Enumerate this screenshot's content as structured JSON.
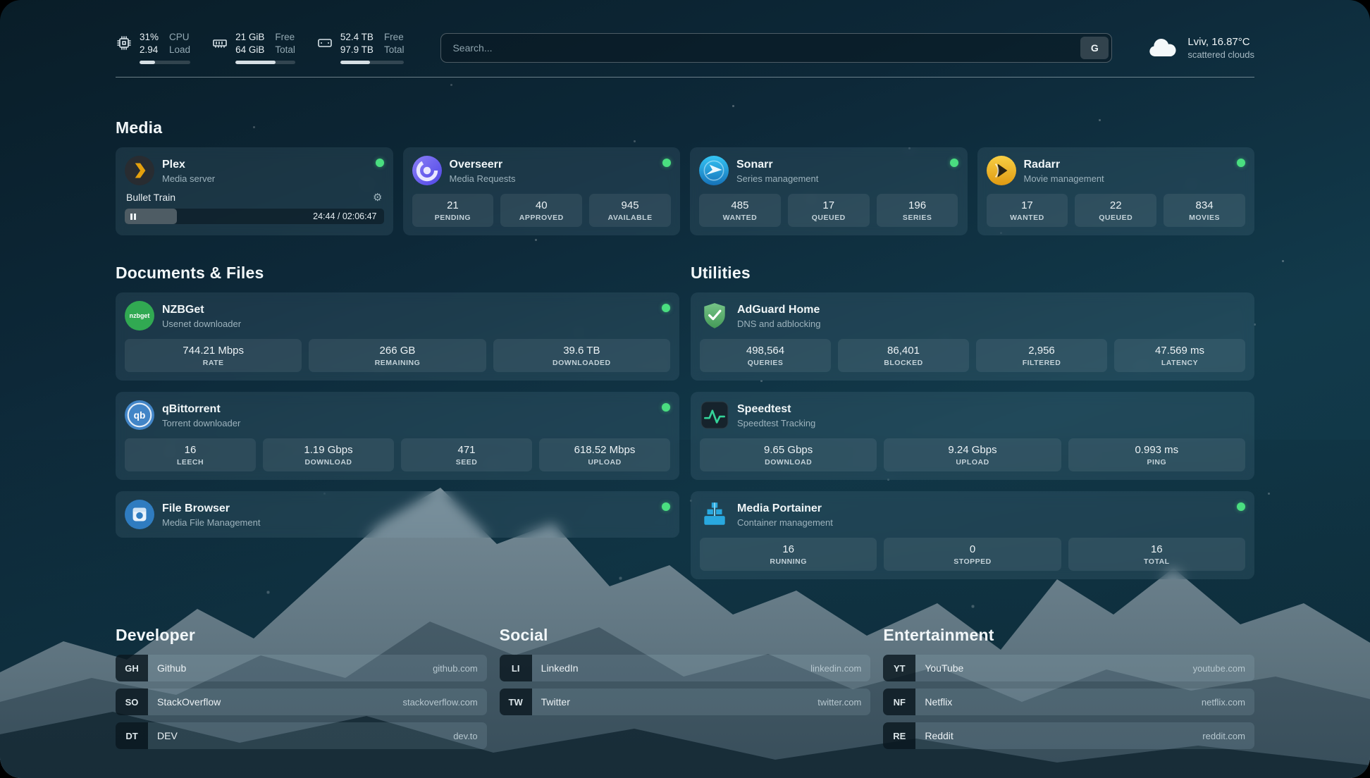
{
  "colors": {
    "status_ok": "#4ade80"
  },
  "topbar": {
    "cpu": {
      "value_top": "31%",
      "value_bottom": "2.94",
      "label_top": "CPU",
      "label_bottom": "Load",
      "progress": 31
    },
    "memory": {
      "value_top": "21 GiB",
      "value_bottom": "64 GiB",
      "label_top": "Free",
      "label_bottom": "Total",
      "progress": 67
    },
    "disk": {
      "value_top": "52.4 TB",
      "value_bottom": "97.9 TB",
      "label_top": "Free",
      "label_bottom": "Total",
      "progress": 47
    },
    "search": {
      "placeholder": "Search...",
      "provider_button": "G"
    },
    "weather": {
      "location": "Lviv, 16.87°C",
      "condition": "scattered clouds"
    }
  },
  "media": {
    "title": "Media",
    "plex": {
      "name": "Plex",
      "subtitle": "Media server",
      "now_playing": "Bullet Train",
      "time": "24:44 / 02:06:47",
      "progress": 20
    },
    "overseerr": {
      "name": "Overseerr",
      "subtitle": "Media Requests",
      "stats": [
        {
          "value": "21",
          "label": "PENDING"
        },
        {
          "value": "40",
          "label": "APPROVED"
        },
        {
          "value": "945",
          "label": "AVAILABLE"
        }
      ]
    },
    "sonarr": {
      "name": "Sonarr",
      "subtitle": "Series management",
      "stats": [
        {
          "value": "485",
          "label": "WANTED"
        },
        {
          "value": "17",
          "label": "QUEUED"
        },
        {
          "value": "196",
          "label": "SERIES"
        }
      ]
    },
    "radarr": {
      "name": "Radarr",
      "subtitle": "Movie management",
      "stats": [
        {
          "value": "17",
          "label": "WANTED"
        },
        {
          "value": "22",
          "label": "QUEUED"
        },
        {
          "value": "834",
          "label": "MOVIES"
        }
      ]
    }
  },
  "documents": {
    "title": "Documents & Files",
    "nzbget": {
      "name": "NZBGet",
      "subtitle": "Usenet downloader",
      "stats": [
        {
          "value": "744.21 Mbps",
          "label": "RATE"
        },
        {
          "value": "266 GB",
          "label": "REMAINING"
        },
        {
          "value": "39.6 TB",
          "label": "DOWNLOADED"
        }
      ]
    },
    "qbittorrent": {
      "name": "qBittorrent",
      "subtitle": "Torrent downloader",
      "stats": [
        {
          "value": "16",
          "label": "LEECH"
        },
        {
          "value": "1.19 Gbps",
          "label": "DOWNLOAD"
        },
        {
          "value": "471",
          "label": "SEED"
        },
        {
          "value": "618.52 Mbps",
          "label": "UPLOAD"
        }
      ]
    },
    "filebrowser": {
      "name": "File Browser",
      "subtitle": "Media File Management"
    }
  },
  "utilities": {
    "title": "Utilities",
    "adguard": {
      "name": "AdGuard Home",
      "subtitle": "DNS and adblocking",
      "stats": [
        {
          "value": "498,564",
          "label": "QUERIES"
        },
        {
          "value": "86,401",
          "label": "BLOCKED"
        },
        {
          "value": "2,956",
          "label": "FILTERED"
        },
        {
          "value": "47.569 ms",
          "label": "LATENCY"
        }
      ]
    },
    "speedtest": {
      "name": "Speedtest",
      "subtitle": "Speedtest Tracking",
      "stats": [
        {
          "value": "9.65 Gbps",
          "label": "DOWNLOAD"
        },
        {
          "value": "9.24 Gbps",
          "label": "UPLOAD"
        },
        {
          "value": "0.993 ms",
          "label": "PING"
        }
      ]
    },
    "portainer": {
      "name": "Media Portainer",
      "subtitle": "Container management",
      "stats": [
        {
          "value": "16",
          "label": "RUNNING"
        },
        {
          "value": "0",
          "label": "STOPPED"
        },
        {
          "value": "16",
          "label": "TOTAL"
        }
      ]
    }
  },
  "bookmarks": {
    "developer": {
      "title": "Developer",
      "items": [
        {
          "abbr": "GH",
          "name": "Github",
          "domain": "github.com"
        },
        {
          "abbr": "SO",
          "name": "StackOverflow",
          "domain": "stackoverflow.com"
        },
        {
          "abbr": "DT",
          "name": "DEV",
          "domain": "dev.to"
        }
      ]
    },
    "social": {
      "title": "Social",
      "items": [
        {
          "abbr": "LI",
          "name": "LinkedIn",
          "domain": "linkedin.com"
        },
        {
          "abbr": "TW",
          "name": "Twitter",
          "domain": "twitter.com"
        }
      ]
    },
    "entertainment": {
      "title": "Entertainment",
      "items": [
        {
          "abbr": "YT",
          "name": "YouTube",
          "domain": "youtube.com"
        },
        {
          "abbr": "NF",
          "name": "Netflix",
          "domain": "netflix.com"
        },
        {
          "abbr": "RE",
          "name": "Reddit",
          "domain": "reddit.com"
        }
      ]
    }
  },
  "icons": {
    "nzbget_label": "nzbget",
    "qbittorrent_label": "qb"
  }
}
